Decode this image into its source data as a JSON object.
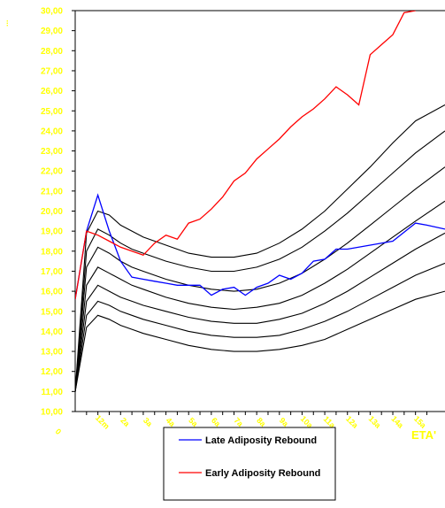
{
  "chart_data": {
    "type": "line",
    "ylabel": "...",
    "xlabel": "ETA'",
    "ylim": [
      10,
      30
    ],
    "y_ticks": [
      "10,00",
      "11,00",
      "12,00",
      "13,00",
      "14,00",
      "15,00",
      "16,00",
      "17,00",
      "18,00",
      "19,00",
      "20,00",
      "21,00",
      "22,00",
      "23,00",
      "24,00",
      "25,00",
      "26,00",
      "27,00",
      "28,00",
      "29,00",
      "30,00"
    ],
    "x_origin_label": "0",
    "x_ticks": [
      "12m",
      "2a",
      "3a",
      "4a",
      "5a",
      "6a",
      "7a",
      "8a",
      "9a",
      "10a",
      "11a",
      "12a",
      "13a",
      "14a",
      "15a"
    ],
    "xlim": [
      0,
      16.3
    ],
    "colors": {
      "late": "#0000ff",
      "early": "#ff0000",
      "percentile": "#000000",
      "axis_text": "#ffff00"
    },
    "percentile_curves": [
      {
        "x": [
          0,
          0.5,
          1,
          1.5,
          2,
          2.5,
          3,
          4,
          5,
          6,
          7,
          8,
          9,
          10,
          11,
          12,
          13,
          14,
          15,
          16.3
        ],
        "y": [
          11.0,
          14.2,
          14.8,
          14.6,
          14.3,
          14.1,
          13.9,
          13.6,
          13.3,
          13.1,
          13.0,
          13.0,
          13.1,
          13.3,
          13.6,
          14.1,
          14.6,
          15.1,
          15.6,
          16.0
        ]
      },
      {
        "x": [
          0,
          0.5,
          1,
          1.5,
          2,
          2.5,
          3,
          4,
          5,
          6,
          7,
          8,
          9,
          10,
          11,
          12,
          13,
          14,
          15,
          16.3
        ],
        "y": [
          11.0,
          14.8,
          15.5,
          15.3,
          15.0,
          14.8,
          14.6,
          14.3,
          14.0,
          13.8,
          13.7,
          13.7,
          13.8,
          14.1,
          14.5,
          15.0,
          15.6,
          16.2,
          16.8,
          17.4
        ]
      },
      {
        "x": [
          0,
          0.5,
          1,
          1.5,
          2,
          2.5,
          3,
          4,
          5,
          6,
          7,
          8,
          9,
          10,
          11,
          12,
          13,
          14,
          15,
          16.3
        ],
        "y": [
          11.0,
          15.5,
          16.3,
          16.0,
          15.7,
          15.5,
          15.3,
          15.0,
          14.7,
          14.5,
          14.4,
          14.4,
          14.6,
          14.9,
          15.4,
          16.0,
          16.7,
          17.4,
          18.1,
          18.9
        ]
      },
      {
        "x": [
          0,
          0.5,
          1,
          1.5,
          2,
          2.5,
          3,
          4,
          5,
          6,
          7,
          8,
          9,
          10,
          11,
          12,
          13,
          14,
          15,
          16.3
        ],
        "y": [
          11.0,
          16.3,
          17.2,
          16.9,
          16.6,
          16.3,
          16.1,
          15.7,
          15.4,
          15.2,
          15.1,
          15.2,
          15.4,
          15.8,
          16.4,
          17.1,
          17.9,
          18.7,
          19.5,
          20.5
        ]
      },
      {
        "x": [
          0,
          0.5,
          1,
          1.5,
          2,
          2.5,
          3,
          4,
          5,
          6,
          7,
          8,
          9,
          10,
          11,
          12,
          13,
          14,
          15,
          16.3
        ],
        "y": [
          11.0,
          17.2,
          18.2,
          17.9,
          17.5,
          17.2,
          17.0,
          16.6,
          16.3,
          16.1,
          16.0,
          16.1,
          16.4,
          16.9,
          17.6,
          18.4,
          19.3,
          20.2,
          21.1,
          22.2
        ]
      },
      {
        "x": [
          0,
          0.5,
          1,
          1.5,
          2,
          2.5,
          3,
          4,
          5,
          6,
          7,
          8,
          9,
          10,
          11,
          12,
          13,
          14,
          15,
          16.3
        ],
        "y": [
          11.0,
          18.0,
          19.1,
          18.8,
          18.4,
          18.1,
          17.9,
          17.5,
          17.2,
          17.0,
          17.0,
          17.2,
          17.6,
          18.2,
          19.0,
          19.9,
          20.9,
          21.9,
          22.9,
          24.0
        ]
      },
      {
        "x": [
          0,
          0.5,
          1,
          1.5,
          2,
          2.5,
          3,
          4,
          5,
          6,
          7,
          8,
          9,
          10,
          11,
          12,
          13,
          14,
          15,
          16.3
        ],
        "y": [
          11.0,
          18.9,
          20.0,
          19.8,
          19.3,
          19.0,
          18.7,
          18.3,
          17.9,
          17.7,
          17.7,
          17.9,
          18.4,
          19.1,
          20.0,
          21.1,
          22.2,
          23.4,
          24.5,
          25.3
        ]
      }
    ],
    "series": [
      {
        "key": "late",
        "name": "Late Adiposity Rebound",
        "x": [
          0,
          0.5,
          1,
          1.5,
          2,
          2.5,
          3,
          3.5,
          4,
          4.5,
          5,
          5.5,
          6,
          6.5,
          7,
          7.5,
          8,
          8.5,
          9,
          9.5,
          10,
          10.5,
          11,
          11.5,
          12,
          13,
          14,
          15,
          15.5,
          16.3
        ],
        "y": [
          15.6,
          19.0,
          20.8,
          19.0,
          17.5,
          16.7,
          16.6,
          16.5,
          16.4,
          16.3,
          16.3,
          16.3,
          15.8,
          16.1,
          16.2,
          15.8,
          16.2,
          16.4,
          16.8,
          16.6,
          16.9,
          17.5,
          17.6,
          18.1,
          18.1,
          18.3,
          18.5,
          19.4,
          19.3,
          19.1
        ]
      },
      {
        "key": "early",
        "name": "Early Adiposity Rebound",
        "x": [
          0,
          0.5,
          1,
          1.5,
          2,
          2.5,
          3,
          3.5,
          4,
          4.5,
          5,
          5.5,
          6,
          6.5,
          7,
          7.5,
          8,
          8.5,
          9,
          9.5,
          10,
          10.5,
          11,
          11.5,
          12,
          12.5,
          13,
          13.5,
          14,
          14.5,
          15
        ],
        "y": [
          15.6,
          19.0,
          18.8,
          18.5,
          18.2,
          18.0,
          17.8,
          18.4,
          18.8,
          18.6,
          19.4,
          19.6,
          20.1,
          20.7,
          21.5,
          21.9,
          22.6,
          23.1,
          23.6,
          24.2,
          24.7,
          25.1,
          25.6,
          26.2,
          25.8,
          25.3,
          27.8,
          28.3,
          28.8,
          29.9,
          30.0
        ]
      }
    ]
  }
}
